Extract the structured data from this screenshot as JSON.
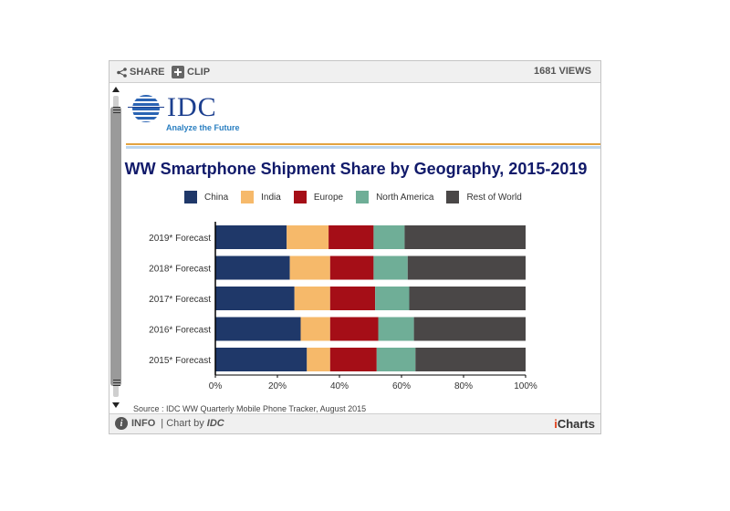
{
  "toolbar": {
    "share_label": "SHARE",
    "clip_label": "CLIP",
    "views": "1681 VIEWS"
  },
  "logo": {
    "name": "IDC",
    "tagline": "Analyze the Future"
  },
  "footer": {
    "info_label": "INFO",
    "chart_by": "| Chart by",
    "chart_by_brand": "IDC",
    "brand_i": "i",
    "brand_rest": "Charts"
  },
  "source": "Source : IDC WW Quarterly Mobile Phone Tracker, August 2015",
  "colors": {
    "China": "#1f3869",
    "India": "#f6b96a",
    "Europe": "#a50e17",
    "North America": "#6fae97",
    "Rest of World": "#4a4747"
  },
  "chart_data": {
    "type": "bar",
    "orientation": "horizontal",
    "stacked": true,
    "title": "WW Smartphone Shipment Share by Geography, 2015-2019",
    "categories": [
      "2019* Forecast",
      "2018* Forecast",
      "2017* Forecast",
      "2016* Forecast",
      "2015* Forecast"
    ],
    "series": [
      {
        "name": "China",
        "values": [
          23,
          24,
          25.5,
          27.5,
          29.5
        ]
      },
      {
        "name": "India",
        "values": [
          13.5,
          13,
          11.5,
          9.5,
          7.5
        ]
      },
      {
        "name": "Europe",
        "values": [
          14.5,
          14,
          14.5,
          15.5,
          15
        ]
      },
      {
        "name": "North America",
        "values": [
          10,
          11,
          11,
          11.5,
          12.5
        ]
      },
      {
        "name": "Rest of World",
        "values": [
          39,
          38,
          37.5,
          36,
          35.5
        ]
      }
    ],
    "xticks": [
      "0%",
      "20%",
      "40%",
      "60%",
      "80%",
      "100%"
    ],
    "xlim": [
      0,
      100
    ],
    "legend_position": "top",
    "grid": false
  }
}
